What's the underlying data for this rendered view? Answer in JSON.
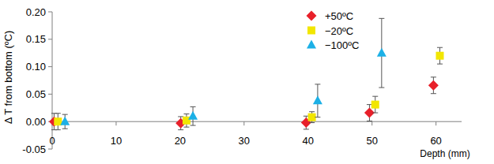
{
  "chart_data": {
    "type": "scatter",
    "x_label": "Depth (mm)",
    "y_label": "Δ T from bottom (ºC)",
    "xlim": [
      0,
      64
    ],
    "xticks": [
      0,
      10,
      20,
      30,
      40,
      50,
      60
    ],
    "ylim": [
      -0.05,
      0.2
    ],
    "yticks": [
      {
        "value": -0.05,
        "label": "-0.05"
      },
      {
        "value": 0,
        "label": "0.00"
      },
      {
        "value": 0.05,
        "label": "0.05"
      },
      {
        "value": 0.1,
        "label": "0.10"
      },
      {
        "value": 0.15,
        "label": "0.15"
      },
      {
        "value": 0.2,
        "label": "0.20"
      }
    ],
    "grid": false,
    "legend": "upper right",
    "series": [
      {
        "name": "+50ºC",
        "color": "#e8202a",
        "marker": "diamond",
        "x": [
          0.3,
          20.1,
          39.7,
          49.6,
          59.6
        ],
        "values": [
          0,
          -0.003,
          -0.002,
          0.016,
          0.066
        ],
        "errors": [
          0.015,
          0.012,
          0.012,
          0.015,
          0.015
        ]
      },
      {
        "name": "−20ºC",
        "color": "#f2e600",
        "marker": "square",
        "x": [
          0.9,
          21,
          40.6,
          50.5,
          60.6
        ],
        "values": [
          0,
          0.002,
          0.008,
          0.031,
          0.12
        ],
        "errors": [
          0.015,
          0.012,
          0.01,
          0.015,
          0.015
        ]
      },
      {
        "name": "−100ºC",
        "color": "#1cb0e6",
        "marker": "triangle",
        "x": [
          2,
          22,
          41.5,
          51.5
        ],
        "values": [
          0,
          0.01,
          0.038,
          0.125
        ],
        "errors": [
          0.013,
          0.017,
          0.03,
          0.063
        ]
      }
    ]
  }
}
